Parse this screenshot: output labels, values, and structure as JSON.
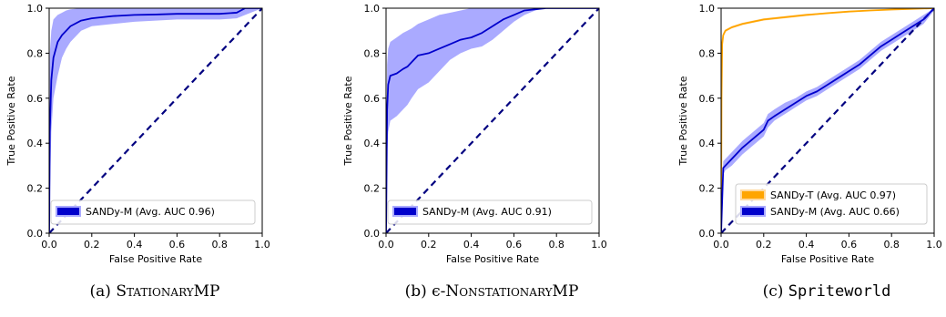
{
  "chart_data": [
    {
      "type": "line",
      "xlabel": "False Positive Rate",
      "ylabel": "True Positive Rate",
      "xlim": [
        0,
        1
      ],
      "ylim": [
        0,
        1
      ],
      "xticks": [
        "0.0",
        "0.2",
        "0.4",
        "0.6",
        "0.8",
        "1.0"
      ],
      "yticks": [
        "0.0",
        "0.2",
        "0.4",
        "0.6",
        "0.8",
        "1.0"
      ],
      "legend_position": "lower-right",
      "caption_prefix": "(a) ",
      "caption": "StationaryMP",
      "series": [
        {
          "name": "SANDy-M (Avg. AUC 0.96)",
          "color": "#0000cc",
          "band_color": "#aaaaff",
          "x": [
            0,
            0.003,
            0.01,
            0.02,
            0.04,
            0.06,
            0.08,
            0.1,
            0.15,
            0.2,
            0.3,
            0.4,
            0.5,
            0.6,
            0.7,
            0.8,
            0.88,
            0.92,
            1.0
          ],
          "y": [
            0,
            0.45,
            0.68,
            0.78,
            0.85,
            0.88,
            0.9,
            0.92,
            0.945,
            0.955,
            0.965,
            0.97,
            0.972,
            0.975,
            0.975,
            0.975,
            0.98,
            1.0,
            1.0
          ],
          "y_lower": [
            0,
            0.15,
            0.45,
            0.6,
            0.7,
            0.78,
            0.82,
            0.85,
            0.9,
            0.92,
            0.93,
            0.94,
            0.945,
            0.95,
            0.95,
            0.95,
            0.955,
            0.97,
            1.0
          ],
          "y_upper": [
            0,
            0.8,
            0.9,
            0.95,
            0.97,
            0.98,
            0.99,
            0.995,
            1.0,
            1.0,
            1.0,
            1.0,
            1.0,
            1.0,
            1.0,
            1.0,
            1.0,
            1.0,
            1.0
          ]
        }
      ]
    },
    {
      "type": "line",
      "xlabel": "False Positive Rate",
      "ylabel": "True Positive Rate",
      "xlim": [
        0,
        1
      ],
      "ylim": [
        0,
        1
      ],
      "xticks": [
        "0.0",
        "0.2",
        "0.4",
        "0.6",
        "0.8",
        "1.0"
      ],
      "yticks": [
        "0.0",
        "0.2",
        "0.4",
        "0.6",
        "0.8",
        "1.0"
      ],
      "legend_position": "lower-right",
      "caption_prefix": "(b) ϵ-",
      "caption": "NonstationaryMP",
      "series": [
        {
          "name": "SANDy-M (Avg. AUC 0.91)",
          "color": "#0000cc",
          "band_color": "#aaaaff",
          "x": [
            0,
            0.005,
            0.01,
            0.02,
            0.05,
            0.08,
            0.1,
            0.12,
            0.15,
            0.2,
            0.25,
            0.3,
            0.35,
            0.4,
            0.45,
            0.5,
            0.55,
            0.6,
            0.65,
            0.7,
            0.75,
            1.0
          ],
          "y": [
            0,
            0.55,
            0.66,
            0.7,
            0.71,
            0.73,
            0.74,
            0.76,
            0.79,
            0.8,
            0.82,
            0.84,
            0.86,
            0.87,
            0.89,
            0.92,
            0.95,
            0.97,
            0.99,
            0.995,
            1.0,
            1.0
          ],
          "y_lower": [
            0,
            0.35,
            0.45,
            0.5,
            0.52,
            0.55,
            0.57,
            0.6,
            0.64,
            0.67,
            0.72,
            0.77,
            0.8,
            0.82,
            0.83,
            0.86,
            0.9,
            0.94,
            0.97,
            0.99,
            1.0,
            1.0
          ],
          "y_upper": [
            0,
            0.75,
            0.82,
            0.85,
            0.87,
            0.89,
            0.9,
            0.91,
            0.93,
            0.95,
            0.97,
            0.98,
            0.99,
            1.0,
            1.0,
            1.0,
            1.0,
            1.0,
            1.0,
            1.0,
            1.0,
            1.0
          ]
        }
      ]
    },
    {
      "type": "line",
      "xlabel": "False Positive Rate",
      "ylabel": "True Positive Rate",
      "xlim": [
        0,
        1
      ],
      "ylim": [
        0,
        1
      ],
      "xticks": [
        "0.0",
        "0.2",
        "0.4",
        "0.6",
        "0.8",
        "1.0"
      ],
      "yticks": [
        "0.0",
        "0.2",
        "0.4",
        "0.6",
        "0.8",
        "1.0"
      ],
      "legend_position": "lower-right",
      "caption_prefix": "(c) ",
      "caption": "Spriteworld",
      "series": [
        {
          "name": "SANDy-T (Avg. AUC 0.97)",
          "color": "#ffa500",
          "band_color": "#ffd9a0",
          "x": [
            0,
            0.002,
            0.005,
            0.01,
            0.02,
            0.05,
            0.1,
            0.2,
            0.3,
            0.4,
            0.5,
            0.6,
            0.7,
            0.8,
            0.9,
            1.0
          ],
          "y": [
            0,
            0.6,
            0.84,
            0.88,
            0.9,
            0.915,
            0.93,
            0.95,
            0.96,
            0.97,
            0.978,
            0.985,
            0.99,
            0.994,
            0.997,
            1.0
          ],
          "y_lower": [
            0,
            0.55,
            0.82,
            0.875,
            0.895,
            0.91,
            0.925,
            0.945,
            0.955,
            0.965,
            0.975,
            0.982,
            0.988,
            0.992,
            0.996,
            1.0
          ],
          "y_upper": [
            0,
            0.65,
            0.86,
            0.89,
            0.905,
            0.92,
            0.935,
            0.955,
            0.965,
            0.975,
            0.981,
            0.988,
            0.992,
            0.996,
            0.998,
            1.0
          ]
        },
        {
          "name": "SANDy-M (Avg. AUC 0.66)",
          "color": "#0000cc",
          "band_color": "#aaaaff",
          "x": [
            0,
            0.01,
            0.02,
            0.05,
            0.1,
            0.15,
            0.2,
            0.22,
            0.25,
            0.3,
            0.35,
            0.4,
            0.45,
            0.5,
            0.55,
            0.6,
            0.65,
            0.7,
            0.75,
            0.8,
            0.85,
            0.9,
            0.95,
            1.0
          ],
          "y": [
            0,
            0.29,
            0.3,
            0.33,
            0.38,
            0.42,
            0.46,
            0.5,
            0.52,
            0.55,
            0.58,
            0.61,
            0.63,
            0.66,
            0.69,
            0.72,
            0.75,
            0.79,
            0.83,
            0.86,
            0.89,
            0.92,
            0.95,
            1.0
          ],
          "y_lower": [
            0,
            0.26,
            0.28,
            0.3,
            0.35,
            0.39,
            0.43,
            0.47,
            0.5,
            0.53,
            0.56,
            0.59,
            0.61,
            0.64,
            0.67,
            0.7,
            0.73,
            0.77,
            0.81,
            0.84,
            0.87,
            0.9,
            0.93,
            0.99
          ],
          "y_upper": [
            0,
            0.32,
            0.33,
            0.36,
            0.41,
            0.45,
            0.49,
            0.53,
            0.55,
            0.58,
            0.6,
            0.63,
            0.65,
            0.68,
            0.71,
            0.74,
            0.77,
            0.81,
            0.85,
            0.88,
            0.91,
            0.94,
            0.97,
            1.0
          ]
        }
      ]
    }
  ]
}
